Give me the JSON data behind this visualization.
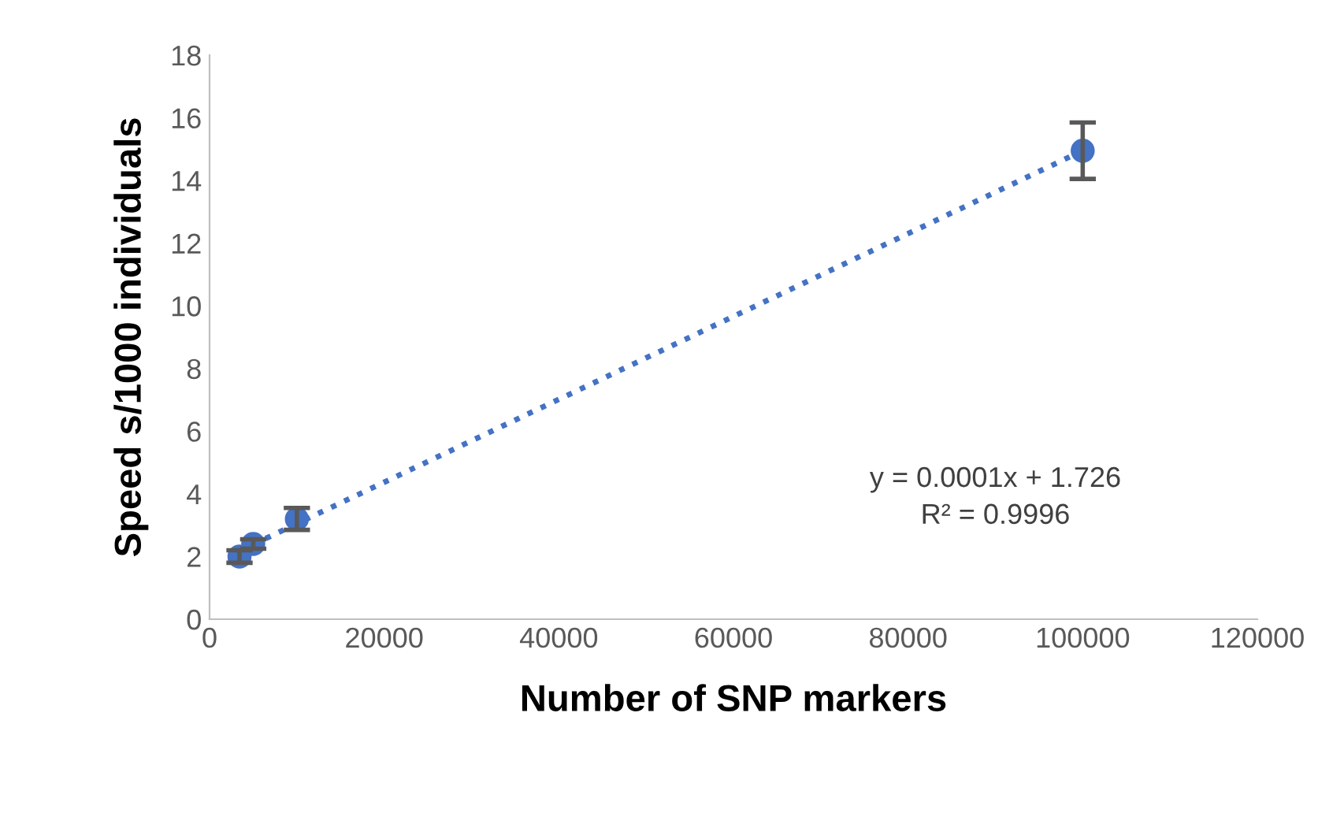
{
  "chart_data": {
    "type": "scatter",
    "xlabel": "Number of SNP markers",
    "ylabel": "Speed s/1000 individuals",
    "series": [
      {
        "color": "#4472c4",
        "marker": "circle",
        "x": [
          3430,
          5000,
          10000,
          100000
        ],
        "values": [
          2.0,
          2.4,
          3.2,
          14.95
        ],
        "errors": [
          0.2,
          0.15,
          0.35,
          0.9
        ]
      },
      {
        "type": "line",
        "color": "#4472c4",
        "line_style": "dotted",
        "marker": "none",
        "x": [
          3430,
          100000
        ],
        "values": [
          2.18,
          14.95
        ]
      }
    ],
    "annotations": [
      "y = 0.0001x + 1.726\nR² = 0.9996"
    ],
    "xlim": [
      0,
      120000
    ],
    "ylim": [
      0,
      18
    ],
    "xticks": [
      0,
      20000,
      40000,
      60000,
      80000,
      100000,
      120000
    ],
    "yticks": [
      0,
      2,
      4,
      6,
      8,
      10,
      12,
      14,
      16,
      18
    ],
    "grid": false,
    "legend": false
  }
}
